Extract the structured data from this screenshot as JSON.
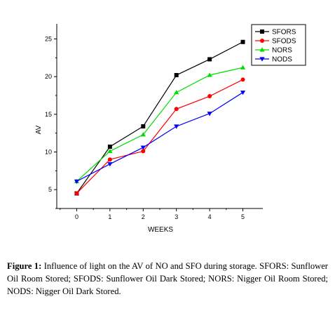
{
  "chart_data": {
    "type": "line",
    "xlabel": "WEEKS",
    "ylabel": "AV",
    "x": [
      0,
      1,
      2,
      3,
      4,
      5
    ],
    "x_ticks": [
      "0",
      "1",
      "2",
      "3",
      "4",
      "5"
    ],
    "y_ticks": [
      "5",
      "10",
      "15",
      "20",
      "25"
    ],
    "xlim": [
      -0.6,
      5.6
    ],
    "ylim": [
      2.5,
      27
    ],
    "grid": false,
    "legend_position": "top-right",
    "series": [
      {
        "name": "SFORS",
        "color": "#000000",
        "marker": "square",
        "values": [
          4.5,
          10.7,
          13.4,
          20.2,
          22.3,
          24.6
        ]
      },
      {
        "name": "SFODS",
        "color": "#ff0000",
        "marker": "circle",
        "values": [
          4.5,
          9.0,
          10.1,
          15.7,
          17.4,
          19.6
        ]
      },
      {
        "name": "NORS",
        "color": "#00dd00",
        "marker": "triangle-up",
        "values": [
          6.1,
          10.1,
          12.3,
          17.9,
          20.2,
          21.2
        ]
      },
      {
        "name": "NODS",
        "color": "#0000ff",
        "marker": "triangle-down",
        "values": [
          6.1,
          8.4,
          10.6,
          13.4,
          15.1,
          17.9
        ]
      }
    ]
  },
  "caption": {
    "label": "Figure 1:",
    "text": "Influence of light on the AV of NO and SFO during storage. SFORS: Sunflower Oil Room Stored; SFODS: Sunflower Oil Dark Stored; NORS: Nigger Oil Room Stored; NODS: Nigger Oil Dark Stored."
  }
}
